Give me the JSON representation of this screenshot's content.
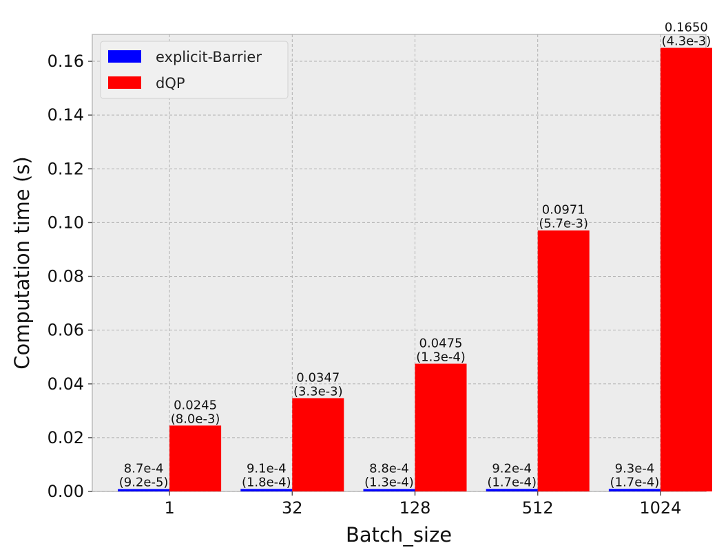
{
  "chart_data": {
    "type": "bar",
    "title": "",
    "xlabel": "Batch_size",
    "ylabel": "Computation time (s)",
    "categories": [
      "1",
      "32",
      "128",
      "512",
      "1024"
    ],
    "ylim": [
      0,
      0.17
    ],
    "yticks": [
      "0.00",
      "0.02",
      "0.04",
      "0.06",
      "0.08",
      "0.10",
      "0.12",
      "0.14",
      "0.16"
    ],
    "grid": true,
    "legend_position": "top-left",
    "series": [
      {
        "name": "explicit-Barrier",
        "color": "#0000ff",
        "values": [
          0.00087,
          0.00091,
          0.00088,
          0.00092,
          0.00093
        ],
        "labels": [
          "8.7e-4",
          "9.1e-4",
          "8.8e-4",
          "9.2e-4",
          "9.3e-4"
        ],
        "std_labels": [
          "(9.2e-5)",
          "(1.8e-4)",
          "(1.3e-4)",
          "(1.7e-4)",
          "(1.7e-4)"
        ]
      },
      {
        "name": "dQP",
        "color": "#ff0000",
        "values": [
          0.0245,
          0.0347,
          0.0475,
          0.0971,
          0.165
        ],
        "labels": [
          "0.0245",
          "0.0347",
          "0.0475",
          "0.0971",
          "0.1650"
        ],
        "std_labels": [
          "(8.0e-3)",
          "(3.3e-3)",
          "(1.3e-4)",
          "(5.7e-3)",
          "(4.3e-3)"
        ]
      }
    ]
  }
}
